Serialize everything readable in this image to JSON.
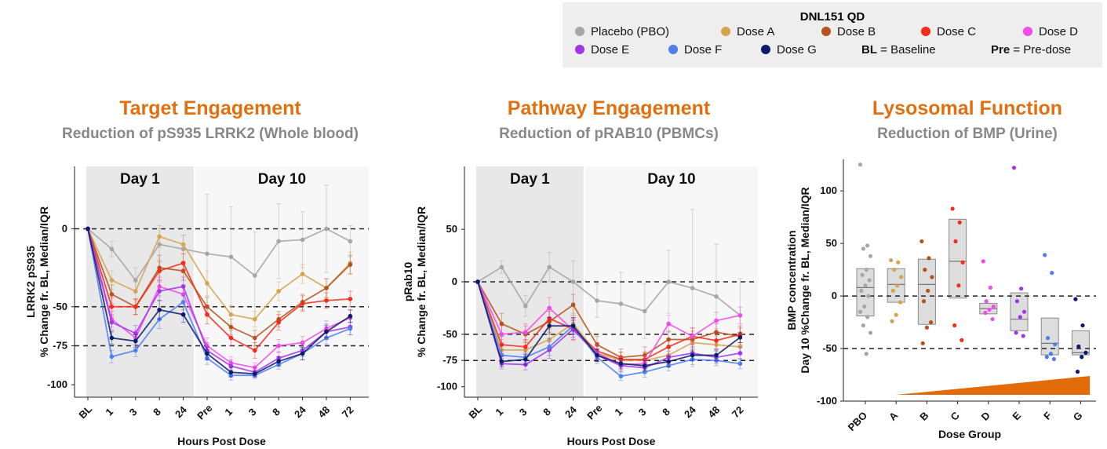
{
  "legend": {
    "title": "DNL151 QD",
    "items": [
      {
        "key": "PBO",
        "label": "Placebo (PBO)",
        "color": "#a6a6a6"
      },
      {
        "key": "A",
        "label": "Dose A",
        "color": "#d4a54f"
      },
      {
        "key": "B",
        "label": "Dose B",
        "color": "#b5531c"
      },
      {
        "key": "C",
        "label": "Dose C",
        "color": "#f22b1b"
      },
      {
        "key": "D",
        "label": "Dose D",
        "color": "#f04ce8"
      },
      {
        "key": "E",
        "label": "Dose E",
        "color": "#a334e8"
      },
      {
        "key": "F",
        "label": "Dose F",
        "color": "#4d7fee"
      },
      {
        "key": "G",
        "label": "Dose G",
        "color": "#0c1a6e"
      }
    ],
    "notes": [
      {
        "bold": "BL",
        "text": " = Baseline"
      },
      {
        "bold": "Pre",
        "text": " = Pre-dose"
      }
    ]
  },
  "chart_data": [
    {
      "type": "line",
      "title": "Target Engagement",
      "subtitle": "Reduction of pS935 LRRK2 (Whole blood)",
      "title_color": "#e07010",
      "xlabel": "Hours Post Dose",
      "ylabel": [
        "LRRK2 pS935",
        "% Change fr. BL, Median/IQR"
      ],
      "x": [
        "BL",
        "1",
        "3",
        "8",
        "24",
        "Pre",
        "1",
        "3",
        "8",
        "24",
        "48",
        "72"
      ],
      "ylim": [
        -108,
        40
      ],
      "yticks": [
        {
          "v": 0,
          "label": "0"
        },
        {
          "v": -50,
          "label": "-50"
        },
        {
          "v": -75,
          "label": "-75"
        },
        {
          "v": -100,
          "label": "-100"
        }
      ],
      "hlines": [
        0,
        -50,
        -75
      ],
      "regions": [
        {
          "label": "Day 1",
          "from": 0,
          "to": 4,
          "color": "#e8e8e8"
        },
        {
          "label": "Day 10",
          "from": 4,
          "to": 11,
          "color": "#f7f7f7"
        }
      ],
      "series": [
        {
          "key": "PBO",
          "values": [
            0,
            -13,
            -33,
            -10,
            -13,
            -16,
            -18,
            -30,
            -8,
            -7,
            0,
            -8
          ],
          "err": [
            0,
            5,
            8,
            10,
            9,
            38,
            32,
            28,
            24,
            18,
            28,
            10
          ]
        },
        {
          "key": "A",
          "values": [
            0,
            -33,
            -40,
            -5,
            -10,
            -35,
            -55,
            -58,
            -40,
            -29,
            -38,
            -22
          ],
          "err": [
            0,
            6,
            6,
            7,
            6,
            8,
            6,
            5,
            6,
            6,
            6,
            7
          ]
        },
        {
          "key": "B",
          "values": [
            0,
            -42,
            -50,
            -25,
            -27,
            -50,
            -63,
            -70,
            -58,
            -47,
            -38,
            -23
          ],
          "err": [
            0,
            6,
            5,
            8,
            6,
            6,
            5,
            5,
            5,
            5,
            6,
            6
          ]
        },
        {
          "key": "C",
          "values": [
            0,
            -50,
            -50,
            -27,
            -22,
            -55,
            -70,
            -78,
            -60,
            -48,
            -46,
            -45
          ],
          "err": [
            0,
            6,
            5,
            6,
            6,
            6,
            5,
            5,
            5,
            5,
            5,
            5
          ]
        },
        {
          "key": "D",
          "values": [
            0,
            -58,
            -70,
            -37,
            -42,
            -75,
            -86,
            -89,
            -75,
            -73,
            -64,
            -57
          ],
          "err": [
            0,
            5,
            5,
            6,
            6,
            5,
            4,
            3,
            4,
            4,
            5,
            5
          ]
        },
        {
          "key": "E",
          "values": [
            0,
            -60,
            -67,
            -40,
            -37,
            -78,
            -88,
            -92,
            -83,
            -78,
            -66,
            -63
          ],
          "err": [
            0,
            5,
            5,
            6,
            6,
            5,
            4,
            3,
            4,
            4,
            5,
            5
          ]
        },
        {
          "key": "F",
          "values": [
            0,
            -82,
            -78,
            -58,
            -47,
            -83,
            -94,
            -94,
            -87,
            -80,
            -70,
            -64
          ],
          "err": [
            0,
            4,
            4,
            6,
            5,
            4,
            3,
            2,
            3,
            4,
            4,
            4
          ]
        },
        {
          "key": "G",
          "values": [
            0,
            -70,
            -72,
            -52,
            -55,
            -80,
            -92,
            -93,
            -85,
            -80,
            -66,
            -56
          ],
          "err": [
            0,
            4,
            4,
            6,
            5,
            4,
            3,
            2,
            3,
            4,
            4,
            4
          ]
        }
      ]
    },
    {
      "type": "line",
      "title": "Pathway Engagement",
      "subtitle": "Reduction of pRAB10 (PBMCs)",
      "title_color": "#e07010",
      "xlabel": "Hours Post Dose",
      "ylabel": [
        "pRab10",
        "% Change fr. BL, Median/IQR"
      ],
      "x": [
        "BL",
        "1",
        "3",
        "8",
        "24",
        "Pre",
        "1",
        "3",
        "8",
        "24",
        "48",
        "72"
      ],
      "ylim": [
        -110,
        110
      ],
      "yticks": [
        {
          "v": 50,
          "label": "50"
        },
        {
          "v": 0,
          "label": "0"
        },
        {
          "v": -50,
          "label": "-50"
        },
        {
          "v": -75,
          "label": "-75"
        },
        {
          "v": -100,
          "label": "-100"
        }
      ],
      "hlines": [
        0,
        -50,
        -75
      ],
      "regions": [
        {
          "label": "Day 1",
          "from": 0,
          "to": 4,
          "color": "#e8e8e8"
        },
        {
          "label": "Day 10",
          "from": 4,
          "to": 11,
          "color": "#f7f7f7"
        }
      ],
      "series": [
        {
          "key": "PBO",
          "values": [
            0,
            14,
            -23,
            14,
            0,
            -18,
            -21,
            -28,
            0,
            -6,
            -14,
            -32
          ],
          "err": [
            0,
            6,
            10,
            14,
            20,
            16,
            30,
            26,
            30,
            75,
            50,
            35
          ]
        },
        {
          "key": "A",
          "values": [
            0,
            -65,
            -65,
            -55,
            -40,
            -68,
            -75,
            -75,
            -70,
            -58,
            -60,
            -62
          ],
          "err": [
            0,
            10,
            8,
            10,
            10,
            8,
            8,
            8,
            8,
            8,
            8,
            8
          ]
        },
        {
          "key": "B",
          "values": [
            0,
            -40,
            -50,
            -38,
            -22,
            -60,
            -72,
            -70,
            -55,
            -55,
            -48,
            -52
          ],
          "err": [
            0,
            10,
            8,
            10,
            10,
            8,
            8,
            8,
            8,
            8,
            8,
            8
          ]
        },
        {
          "key": "C",
          "values": [
            0,
            -60,
            -62,
            -35,
            -45,
            -66,
            -74,
            -74,
            -62,
            -52,
            -56,
            -50
          ],
          "err": [
            0,
            8,
            7,
            10,
            10,
            8,
            7,
            7,
            8,
            8,
            8,
            8
          ]
        },
        {
          "key": "D",
          "values": [
            0,
            -50,
            -48,
            -25,
            -46,
            -68,
            -79,
            -78,
            -40,
            -52,
            -37,
            -32
          ],
          "err": [
            0,
            8,
            8,
            10,
            10,
            8,
            7,
            7,
            8,
            8,
            8,
            8
          ]
        },
        {
          "key": "E",
          "values": [
            0,
            -78,
            -79,
            -65,
            -45,
            -70,
            -80,
            -82,
            -72,
            -68,
            -72,
            -68
          ],
          "err": [
            0,
            5,
            5,
            8,
            8,
            6,
            5,
            5,
            6,
            6,
            6,
            6
          ]
        },
        {
          "key": "F",
          "values": [
            0,
            -70,
            -72,
            -62,
            -42,
            -72,
            -90,
            -86,
            -80,
            -74,
            -75,
            -78
          ],
          "err": [
            0,
            5,
            5,
            8,
            8,
            6,
            4,
            5,
            5,
            5,
            5,
            5
          ]
        },
        {
          "key": "G",
          "values": [
            0,
            -76,
            -74,
            -42,
            -42,
            -70,
            -78,
            -80,
            -76,
            -70,
            -70,
            -53
          ],
          "err": [
            0,
            5,
            5,
            8,
            8,
            6,
            5,
            5,
            5,
            5,
            5,
            5
          ]
        }
      ]
    },
    {
      "type": "box",
      "title": "Lysosomal Function",
      "subtitle": "Reduction of BMP (Urine)",
      "title_color": "#e07010",
      "xlabel": "Dose Group",
      "ylabel": [
        "BMP concentration",
        "Day 10 %Change fr. BL, Median/IQR"
      ],
      "categories": [
        "PBO",
        "A",
        "B",
        "C",
        "D",
        "E",
        "F",
        "G"
      ],
      "ylim": [
        -100,
        130
      ],
      "yticks": [
        {
          "v": 100,
          "label": "100"
        },
        {
          "v": 50,
          "label": "50"
        },
        {
          "v": 0,
          "label": "0"
        },
        {
          "v": -50,
          "label": "-50"
        },
        {
          "v": -100,
          "label": "-100"
        }
      ],
      "hlines": [
        0,
        -50
      ],
      "arrow_color": "#e36c0a",
      "boxes": [
        {
          "key": "PBO",
          "q1": -19,
          "median": 8,
          "q3": 26,
          "points": [
            125,
            48,
            45,
            38,
            25,
            20,
            15,
            10,
            5,
            0,
            -10,
            -15,
            -20,
            -28,
            -35,
            -55
          ]
        },
        {
          "key": "A",
          "q1": -6,
          "median": 11,
          "q3": 26,
          "points": [
            34,
            32,
            25,
            18,
            10,
            5,
            -6,
            -18,
            -24
          ]
        },
        {
          "key": "B",
          "q1": -27,
          "median": 11,
          "q3": 35,
          "points": [
            52,
            36,
            25,
            18,
            5,
            -5,
            -25,
            -30,
            -45
          ]
        },
        {
          "key": "C",
          "q1": -2,
          "median": 33,
          "q3": 73,
          "points": [
            83,
            70,
            52,
            32,
            10,
            -28,
            -42
          ]
        },
        {
          "key": "D",
          "q1": -17,
          "median": -12,
          "q3": -7,
          "points": [
            33,
            8,
            -5,
            -10,
            -13,
            -16,
            -22
          ]
        },
        {
          "key": "E",
          "q1": -33,
          "median": -22,
          "q3": 3,
          "points": [
            122,
            7,
            -5,
            -15,
            -20,
            -35,
            -38
          ]
        },
        {
          "key": "F",
          "q1": -56,
          "median": -45,
          "q3": -21,
          "points": [
            39,
            22,
            -40,
            -46,
            -55,
            -58,
            -60
          ]
        },
        {
          "key": "G",
          "q1": -56,
          "median": -54,
          "q3": -33,
          "points": [
            -3,
            -28,
            -48,
            -54,
            -58,
            -72
          ]
        }
      ]
    }
  ]
}
